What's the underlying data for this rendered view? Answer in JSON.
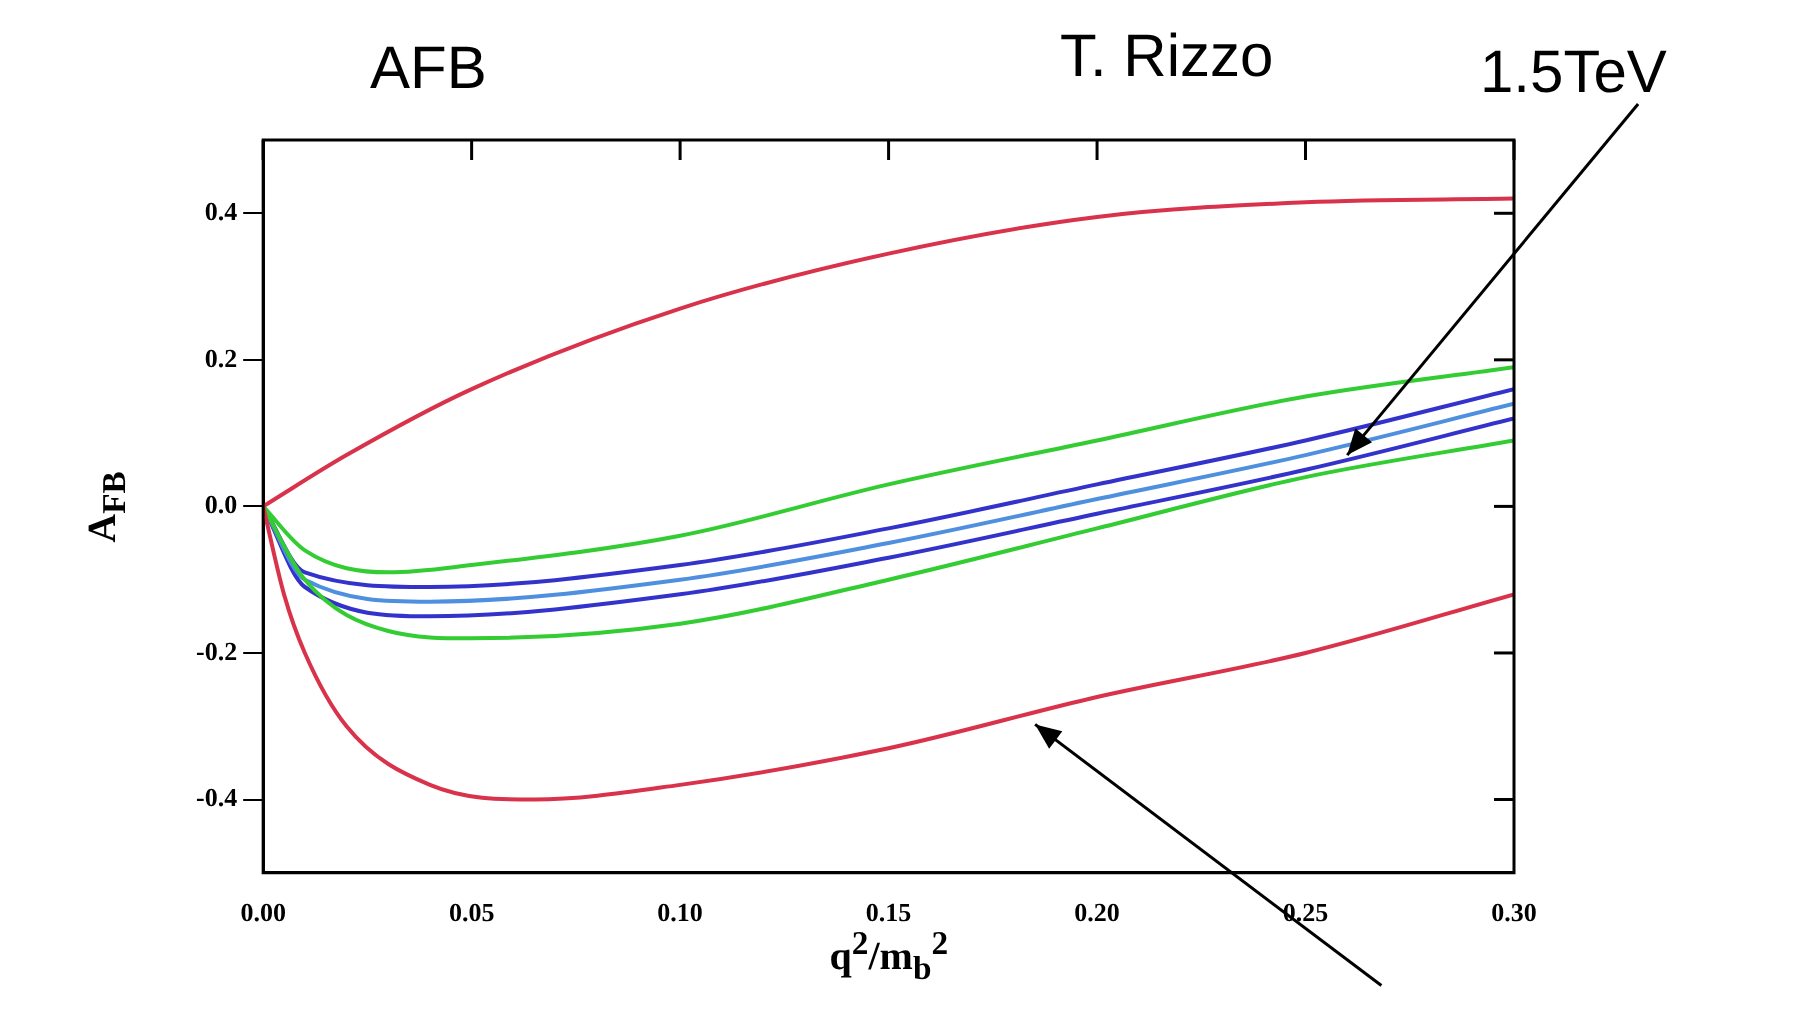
{
  "chart_data": {
    "type": "line",
    "xlabel": "q$^{2}$/m$_{b}$$^{2}$",
    "ylabel": "A$_{FB}$",
    "annotations": [
      "AFB",
      "T. Rizzo",
      {
        "text": "1.5TeV",
        "x": 0.26,
        "y": 0.07
      }
    ],
    "xlim": [
      0,
      0.3
    ],
    "ylim": [
      -0.5,
      0.5
    ],
    "xticks": [
      {
        "value": 0,
        "label": "0.00"
      },
      {
        "value": 0.05,
        "label": "0.05"
      },
      {
        "value": 0.1,
        "label": "0.10"
      },
      {
        "value": 0.15,
        "label": "0.15"
      },
      {
        "value": 0.2,
        "label": "0.20"
      },
      {
        "value": 0.25,
        "label": "0.25"
      },
      {
        "value": 0.3,
        "label": "0.30"
      }
    ],
    "yticks": [
      -0.4,
      -0.2,
      {
        "value": 0,
        "label": "0.0"
      },
      0.2,
      0.4
    ],
    "grid": false,
    "legend": false,
    "marker": "none",
    "line_style": "solid",
    "series": [
      {
        "color": "#d9324b",
        "x": [
          0,
          0.02,
          0.05,
          0.1,
          0.15,
          0.2,
          0.25,
          0.3
        ],
        "values": [
          0,
          0.07,
          0.16,
          0.27,
          0.345,
          0.395,
          0.415,
          0.42
        ]
      },
      {
        "color": "#d9324b",
        "x": [
          0,
          0.005,
          0.01,
          0.02,
          0.04,
          0.065,
          0.1,
          0.15,
          0.2,
          0.25,
          0.3
        ],
        "values": [
          0,
          -0.12,
          -0.2,
          -0.3,
          -0.38,
          -0.4,
          -0.38,
          -0.33,
          -0.26,
          -0.2,
          -0.12
        ]
      },
      {
        "color": "#33cc33",
        "x": [
          0,
          0.01,
          0.03,
          0.05,
          0.1,
          0.15,
          0.2,
          0.25,
          0.3
        ],
        "values": [
          0,
          -0.06,
          -0.09,
          -0.08,
          -0.04,
          0.03,
          0.09,
          0.15,
          0.19
        ]
      },
      {
        "color": "#33cc33",
        "x": [
          0,
          0.01,
          0.03,
          0.05,
          0.1,
          0.15,
          0.2,
          0.25,
          0.3
        ],
        "values": [
          0,
          -0.1,
          -0.17,
          -0.18,
          -0.16,
          -0.1,
          -0.03,
          0.04,
          0.09
        ]
      },
      {
        "color": "#3333cc",
        "x": [
          0,
          0.01,
          0.04,
          0.1,
          0.15,
          0.2,
          0.25,
          0.3
        ],
        "values": [
          0,
          -0.09,
          -0.11,
          -0.08,
          -0.03,
          0.03,
          0.09,
          0.16
        ]
      },
      {
        "color": "#4f8fe0",
        "x": [
          0,
          0.01,
          0.04,
          0.1,
          0.15,
          0.2,
          0.25,
          0.3
        ],
        "values": [
          0,
          -0.1,
          -0.13,
          -0.1,
          -0.05,
          0.01,
          0.07,
          0.14
        ]
      },
      {
        "color": "#3333cc",
        "x": [
          0,
          0.01,
          0.04,
          0.1,
          0.15,
          0.2,
          0.25,
          0.3
        ],
        "values": [
          0,
          -0.11,
          -0.15,
          -0.12,
          -0.07,
          -0.01,
          0.05,
          0.12
        ]
      }
    ]
  }
}
